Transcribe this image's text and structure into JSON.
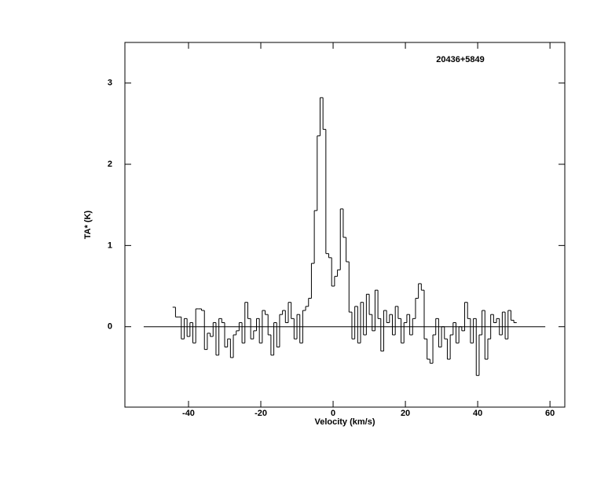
{
  "chart_data": {
    "type": "step",
    "annotation": "20436+5849",
    "xlabel": "Velocity (km/s)",
    "ylabel": "TA* (K)",
    "xlim": [
      -57.6,
      64.1
    ],
    "ylim": [
      -0.99,
      3.5
    ],
    "xticks": [
      -40,
      -20,
      0,
      20,
      40,
      60
    ],
    "yticks": [
      0,
      1,
      2,
      3
    ],
    "baseline": {
      "y": 0,
      "x": [
        -52.4,
        58.7
      ]
    },
    "channel_width": 0.8,
    "color": "#000000",
    "series": [
      {
        "name": "20436+5849",
        "x": [
          -44,
          -43.2,
          -42.4,
          -41.6,
          -40.8,
          -40,
          -39.2,
          -38.4,
          -37.6,
          -36.8,
          -36,
          -35.2,
          -34.4,
          -33.6,
          -32.8,
          -32,
          -31.2,
          -30.4,
          -29.6,
          -28.8,
          -28,
          -27.2,
          -26.4,
          -25.6,
          -24.8,
          -24,
          -23.2,
          -22.4,
          -21.6,
          -20.8,
          -20,
          -19.2,
          -18.4,
          -17.6,
          -16.8,
          -16,
          -15.2,
          -14.4,
          -13.6,
          -12.8,
          -12,
          -11.2,
          -10.4,
          -9.6,
          -8.8,
          -8,
          -7.2,
          -6.4,
          -5.6,
          -4.8,
          -4,
          -3.2,
          -2.4,
          -1.6,
          -0.8,
          0,
          0.8,
          1.6,
          2.4,
          3.2,
          4,
          4.8,
          5.6,
          6.4,
          7.2,
          8,
          8.8,
          9.6,
          10.4,
          11.2,
          12,
          12.8,
          13.6,
          14.4,
          15.2,
          16,
          16.8,
          17.6,
          18.4,
          19.2,
          20,
          20.8,
          21.6,
          22.4,
          23.2,
          24,
          24.8,
          25.6,
          26.4,
          27.2,
          28,
          28.8,
          29.6,
          30.4,
          31.2,
          32,
          32.8,
          33.6,
          34.4,
          35.2,
          36,
          36.8,
          37.6,
          38.4,
          39.2,
          40,
          40.8,
          41.6,
          42.4,
          43.2,
          44,
          44.8,
          45.6,
          46.4,
          47.2,
          48,
          48.8,
          49.6,
          50.4
        ],
        "values": [
          0.24,
          0.12,
          0.12,
          -0.15,
          0.1,
          -0.12,
          0.05,
          -0.2,
          0.22,
          0.22,
          0.2,
          -0.28,
          -0.08,
          -0.12,
          0.05,
          -0.35,
          0.1,
          0.05,
          -0.25,
          -0.15,
          -0.38,
          -0.1,
          -0.05,
          0.05,
          -0.2,
          0.3,
          0.1,
          -0.15,
          -0.05,
          0.1,
          -0.2,
          0.2,
          0.15,
          -0.1,
          -0.35,
          0.05,
          -0.25,
          0.15,
          0.2,
          0.05,
          0.3,
          0.1,
          -0.15,
          0.15,
          -0.2,
          0.2,
          0.25,
          0.35,
          0.78,
          1.43,
          2.35,
          2.82,
          2.43,
          0.9,
          0.85,
          0.5,
          0.62,
          0.7,
          1.45,
          1.1,
          0.8,
          0.18,
          -0.15,
          0.25,
          -0.2,
          0.3,
          -0.1,
          0.4,
          0.15,
          -0.05,
          0.45,
          0.1,
          -0.3,
          0.2,
          0.05,
          0.15,
          -0.1,
          0.25,
          0.1,
          -0.2,
          0.05,
          0.15,
          -0.1,
          0.1,
          0.35,
          0.53,
          0.45,
          -0.15,
          -0.4,
          -0.45,
          -0.1,
          0.1,
          -0.25,
          0,
          -0.15,
          -0.4,
          -0.1,
          0.05,
          -0.2,
          0,
          -0.05,
          0.3,
          0.1,
          -0.2,
          0.1,
          -0.6,
          -0.1,
          0.2,
          -0.4,
          -0.15,
          0.15,
          0.05,
          0.1,
          -0.1,
          0.18,
          -0.15,
          0.2,
          0.08,
          0.05
        ]
      }
    ]
  }
}
